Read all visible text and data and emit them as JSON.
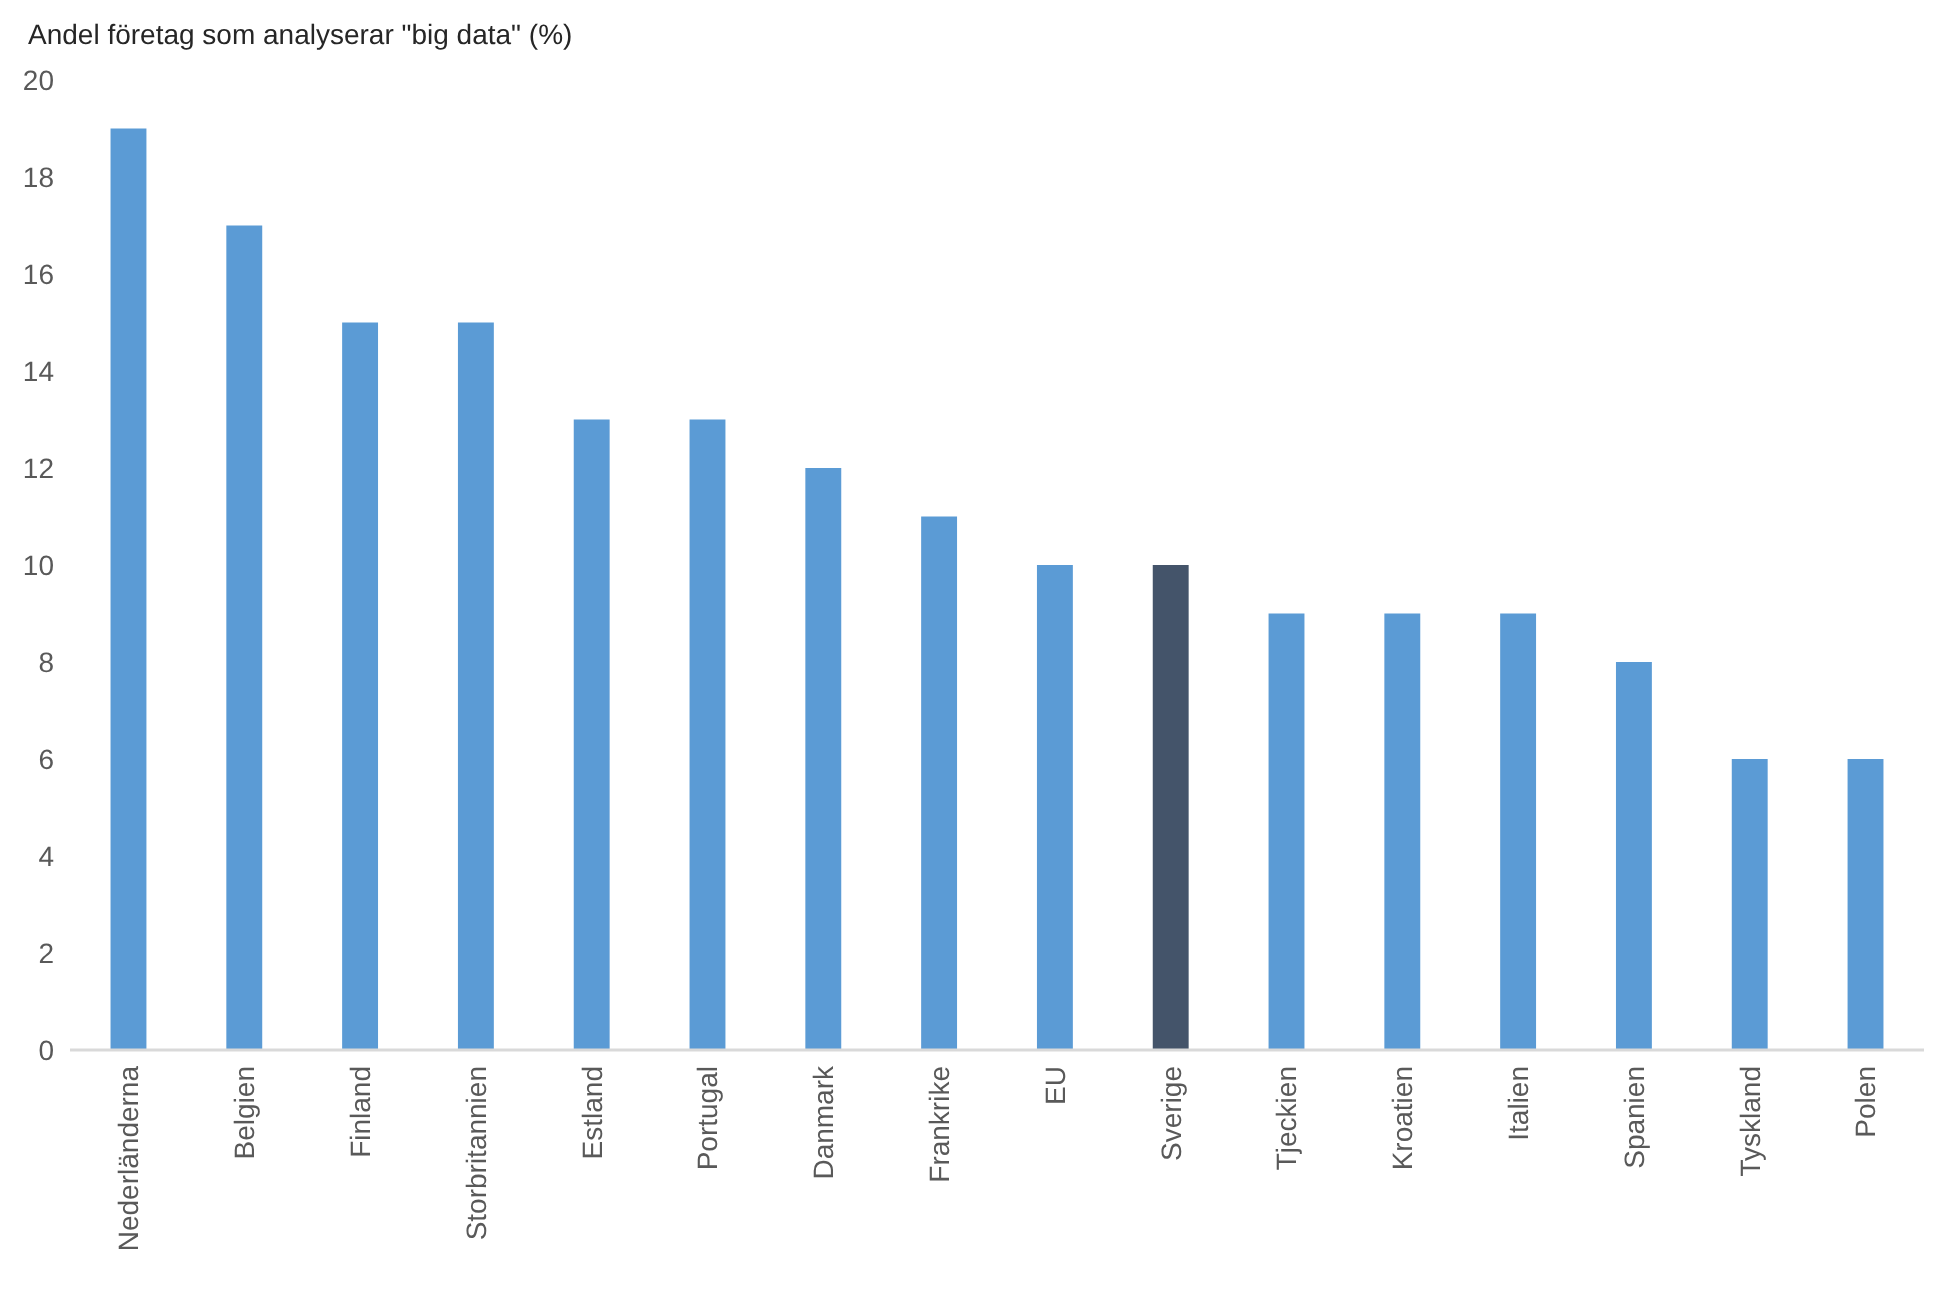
{
  "chart_data": {
    "type": "bar",
    "ylabel": "Andel företag som analyserar \"big data\" (%)",
    "categories": [
      "Nederländerna",
      "Belgien",
      "Finland",
      "Storbritannien",
      "Estland",
      "Portugal",
      "Danmark",
      "Frankrike",
      "EU",
      "Sverige",
      "Tjeckien",
      "Kroatien",
      "Italien",
      "Spanien",
      "Tyskland",
      "Polen"
    ],
    "values": [
      19,
      17,
      15,
      15,
      13,
      13,
      12,
      11,
      10,
      10,
      9,
      9,
      9,
      8,
      6,
      6
    ],
    "colors": [
      "#5b9bd5",
      "#5b9bd5",
      "#5b9bd5",
      "#5b9bd5",
      "#5b9bd5",
      "#5b9bd5",
      "#5b9bd5",
      "#5b9bd5",
      "#5b9bd5",
      "#44546a",
      "#5b9bd5",
      "#5b9bd5",
      "#5b9bd5",
      "#5b9bd5",
      "#5b9bd5",
      "#5b9bd5"
    ],
    "ylim": [
      0,
      20
    ],
    "yticks": [
      0,
      2,
      4,
      6,
      8,
      10,
      12,
      14,
      16,
      18,
      20
    ],
    "grid": false
  }
}
